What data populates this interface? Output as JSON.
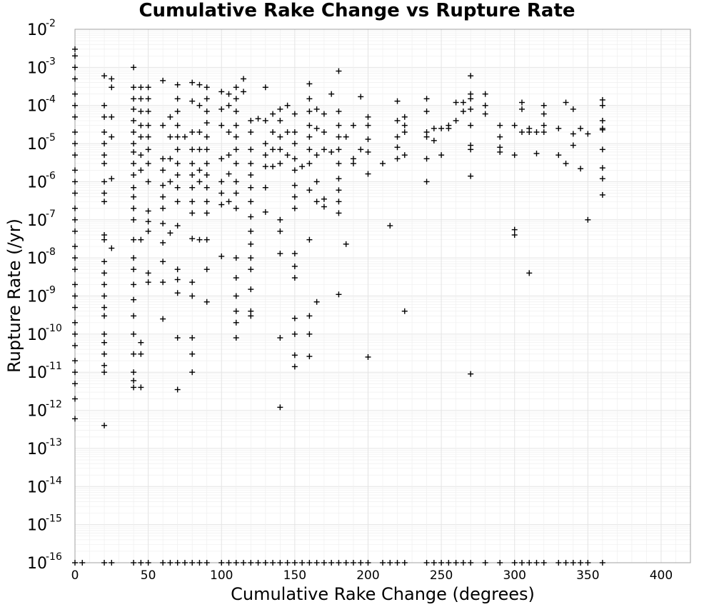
{
  "chart_data": {
    "type": "scatter",
    "title": "Cumulative Rake Change vs Rupture Rate",
    "xlabel": "Cumulative Rake Change (degrees)",
    "ylabel": "Rupture Rate (/yr)",
    "xlim": [
      0,
      420
    ],
    "ylim": [
      1e-16,
      0.01
    ],
    "y_scale": "log",
    "grid": true,
    "marker": "plus",
    "marker_color": "#000000",
    "xticks": [
      0,
      50,
      100,
      150,
      200,
      250,
      300,
      350,
      400
    ],
    "xtick_labels": [
      "0",
      "50",
      "100",
      "150",
      "200",
      "250",
      "300",
      "350",
      "400"
    ],
    "ytick_exponents": [
      -2,
      -3,
      -4,
      -5,
      -6,
      -7,
      -8,
      -9,
      -10,
      -11,
      -12,
      -13,
      -14,
      -15,
      -16
    ],
    "ytick_base": "10",
    "ytick_exp_labels": [
      "-2",
      "-3",
      "-4",
      "-5",
      "-6",
      "-7",
      "-8",
      "-9",
      "-10",
      "-11",
      "-12",
      "-13",
      "-14",
      "-15",
      "-16"
    ],
    "points": [
      [
        0,
        0.003
      ],
      [
        0,
        0.002
      ],
      [
        0,
        0.001
      ],
      [
        0,
        0.0005
      ],
      [
        0,
        0.0002
      ],
      [
        0,
        0.0001
      ],
      [
        0,
        5e-05
      ],
      [
        0,
        2e-05
      ],
      [
        0,
        1e-05
      ],
      [
        0,
        5e-06
      ],
      [
        0,
        2e-06
      ],
      [
        0,
        1e-06
      ],
      [
        0,
        5e-07
      ],
      [
        0,
        2e-07
      ],
      [
        0,
        1e-07
      ],
      [
        0,
        5e-08
      ],
      [
        0,
        2e-08
      ],
      [
        0,
        1e-08
      ],
      [
        0,
        5e-09
      ],
      [
        0,
        2e-09
      ],
      [
        0,
        1e-09
      ],
      [
        0,
        5e-10
      ],
      [
        0,
        2e-10
      ],
      [
        0,
        1e-10
      ],
      [
        0,
        5e-11
      ],
      [
        0,
        2e-11
      ],
      [
        0,
        1e-11
      ],
      [
        0,
        5e-12
      ],
      [
        0,
        2e-12
      ],
      [
        0,
        6e-13
      ],
      [
        20,
        0.0006
      ],
      [
        20,
        0.0001
      ],
      [
        20,
        5e-05
      ],
      [
        20,
        2e-05
      ],
      [
        20,
        1e-05
      ],
      [
        20,
        5e-06
      ],
      [
        20,
        3e-06
      ],
      [
        20,
        1e-06
      ],
      [
        20,
        5e-07
      ],
      [
        20,
        3e-07
      ],
      [
        20,
        4e-08
      ],
      [
        20,
        3e-08
      ],
      [
        20,
        8e-09
      ],
      [
        20,
        4e-09
      ],
      [
        20,
        2e-09
      ],
      [
        20,
        1e-09
      ],
      [
        20,
        5e-10
      ],
      [
        20,
        3e-10
      ],
      [
        20,
        1e-10
      ],
      [
        20,
        6e-11
      ],
      [
        20,
        3e-11
      ],
      [
        20,
        1.5e-11
      ],
      [
        20,
        1e-11
      ],
      [
        20,
        4e-13
      ],
      [
        25,
        0.0005
      ],
      [
        25,
        0.0003
      ],
      [
        25,
        5e-05
      ],
      [
        25,
        1.5e-05
      ],
      [
        25,
        1.2e-06
      ],
      [
        25,
        1.8e-08
      ],
      [
        40,
        0.001
      ],
      [
        40,
        0.0003
      ],
      [
        40,
        0.00015
      ],
      [
        40,
        8e-05
      ],
      [
        40,
        4e-05
      ],
      [
        40,
        2e-05
      ],
      [
        40,
        1e-05
      ],
      [
        40,
        6e-06
      ],
      [
        40,
        3e-06
      ],
      [
        40,
        1.5e-06
      ],
      [
        40,
        7e-07
      ],
      [
        40,
        4e-07
      ],
      [
        40,
        2e-07
      ],
      [
        40,
        1e-07
      ],
      [
        40,
        3e-08
      ],
      [
        40,
        1e-08
      ],
      [
        40,
        5e-09
      ],
      [
        40,
        2e-09
      ],
      [
        40,
        8e-10
      ],
      [
        40,
        3e-10
      ],
      [
        40,
        1e-10
      ],
      [
        40,
        3e-11
      ],
      [
        40,
        1e-11
      ],
      [
        40,
        6e-12
      ],
      [
        40,
        4e-12
      ],
      [
        45,
        0.0003
      ],
      [
        45,
        0.00015
      ],
      [
        45,
        7e-05
      ],
      [
        45,
        3e-05
      ],
      [
        45,
        1.5e-05
      ],
      [
        45,
        5e-06
      ],
      [
        45,
        2e-06
      ],
      [
        45,
        3e-08
      ],
      [
        45,
        6e-11
      ],
      [
        45,
        3e-11
      ],
      [
        45,
        4e-12
      ],
      [
        50,
        0.0003
      ],
      [
        50,
        0.00015
      ],
      [
        50,
        7e-05
      ],
      [
        50,
        3e-05
      ],
      [
        50,
        1.5e-05
      ],
      [
        50,
        7e-06
      ],
      [
        50,
        3e-06
      ],
      [
        50,
        1e-06
      ],
      [
        50,
        1.7e-07
      ],
      [
        50,
        9e-08
      ],
      [
        50,
        5e-08
      ],
      [
        50,
        4e-09
      ],
      [
        50,
        2.3e-09
      ],
      [
        60,
        0.00045
      ],
      [
        60,
        3e-05
      ],
      [
        60,
        4e-06
      ],
      [
        60,
        2e-06
      ],
      [
        60,
        8e-07
      ],
      [
        60,
        4e-07
      ],
      [
        60,
        2e-07
      ],
      [
        60,
        8e-08
      ],
      [
        60,
        2.5e-08
      ],
      [
        60,
        8e-09
      ],
      [
        60,
        2.3e-09
      ],
      [
        60,
        2.5e-10
      ],
      [
        65,
        5e-05
      ],
      [
        65,
        1.5e-05
      ],
      [
        65,
        4e-06
      ],
      [
        65,
        1e-06
      ],
      [
        65,
        4.5e-08
      ],
      [
        70,
        0.00035
      ],
      [
        70,
        0.00015
      ],
      [
        70,
        7e-05
      ],
      [
        70,
        3e-05
      ],
      [
        70,
        1.5e-05
      ],
      [
        70,
        7e-06
      ],
      [
        70,
        3e-06
      ],
      [
        70,
        1.5e-06
      ],
      [
        70,
        7e-07
      ],
      [
        70,
        3e-07
      ],
      [
        70,
        7e-08
      ],
      [
        70,
        5e-09
      ],
      [
        70,
        2.7e-09
      ],
      [
        70,
        1.2e-09
      ],
      [
        70,
        8e-11
      ],
      [
        70,
        3.5e-12
      ],
      [
        75,
        1.5e-05
      ],
      [
        80,
        0.0004
      ],
      [
        80,
        0.00013
      ],
      [
        80,
        2e-05
      ],
      [
        80,
        7e-06
      ],
      [
        80,
        3e-06
      ],
      [
        80,
        1.5e-06
      ],
      [
        80,
        7e-07
      ],
      [
        80,
        3e-07
      ],
      [
        80,
        1.5e-07
      ],
      [
        80,
        3.2e-08
      ],
      [
        80,
        2.3e-09
      ],
      [
        80,
        1e-09
      ],
      [
        80,
        8e-11
      ],
      [
        80,
        3e-11
      ],
      [
        80,
        1e-11
      ],
      [
        85,
        0.00035
      ],
      [
        85,
        0.0001
      ],
      [
        85,
        2e-05
      ],
      [
        85,
        7e-06
      ],
      [
        85,
        2e-06
      ],
      [
        85,
        1e-06
      ],
      [
        85,
        3e-08
      ],
      [
        90,
        0.0003
      ],
      [
        90,
        0.00015
      ],
      [
        90,
        7e-05
      ],
      [
        90,
        3.5e-05
      ],
      [
        90,
        1.5e-05
      ],
      [
        90,
        7e-06
      ],
      [
        90,
        3e-06
      ],
      [
        90,
        1.5e-06
      ],
      [
        90,
        7e-07
      ],
      [
        90,
        3e-07
      ],
      [
        90,
        1.5e-07
      ],
      [
        90,
        3e-08
      ],
      [
        90,
        5e-09
      ],
      [
        90,
        7e-10
      ],
      [
        100,
        0.00023
      ],
      [
        100,
        8e-05
      ],
      [
        100,
        3e-05
      ],
      [
        100,
        4e-06
      ],
      [
        100,
        1e-06
      ],
      [
        100,
        5e-07
      ],
      [
        100,
        2.5e-07
      ],
      [
        100,
        1.1e-08
      ],
      [
        105,
        0.0002
      ],
      [
        105,
        0.0001
      ],
      [
        105,
        2e-05
      ],
      [
        105,
        5e-06
      ],
      [
        105,
        1.6e-06
      ],
      [
        105,
        3e-07
      ],
      [
        110,
        0.0003
      ],
      [
        110,
        0.00015
      ],
      [
        110,
        7e-05
      ],
      [
        110,
        3e-05
      ],
      [
        110,
        1.5e-05
      ],
      [
        110,
        7e-06
      ],
      [
        110,
        3e-06
      ],
      [
        110,
        1e-06
      ],
      [
        110,
        5e-07
      ],
      [
        110,
        2e-07
      ],
      [
        110,
        1e-08
      ],
      [
        110,
        3e-09
      ],
      [
        110,
        1e-09
      ],
      [
        110,
        4e-10
      ],
      [
        110,
        2e-10
      ],
      [
        110,
        8e-11
      ],
      [
        115,
        0.0005
      ],
      [
        115,
        0.00023
      ],
      [
        120,
        4e-05
      ],
      [
        120,
        2e-05
      ],
      [
        120,
        7e-06
      ],
      [
        120,
        3e-06
      ],
      [
        120,
        1.5e-06
      ],
      [
        120,
        7e-07
      ],
      [
        120,
        3e-07
      ],
      [
        120,
        1.2e-07
      ],
      [
        120,
        5e-08
      ],
      [
        120,
        2.3e-08
      ],
      [
        120,
        1e-08
      ],
      [
        120,
        5e-09
      ],
      [
        120,
        1.5e-09
      ],
      [
        120,
        4e-10
      ],
      [
        120,
        3e-10
      ],
      [
        125,
        4.5e-05
      ],
      [
        130,
        0.0003
      ],
      [
        130,
        4e-05
      ],
      [
        130,
        1e-05
      ],
      [
        130,
        5e-06
      ],
      [
        130,
        2.5e-06
      ],
      [
        130,
        7e-07
      ],
      [
        130,
        1.6e-07
      ],
      [
        135,
        6e-05
      ],
      [
        135,
        2e-05
      ],
      [
        135,
        7e-06
      ],
      [
        135,
        2.5e-06
      ],
      [
        140,
        8e-05
      ],
      [
        140,
        4e-05
      ],
      [
        140,
        1.5e-05
      ],
      [
        140,
        7e-06
      ],
      [
        140,
        3e-06
      ],
      [
        140,
        1e-07
      ],
      [
        140,
        5e-08
      ],
      [
        140,
        1.3e-08
      ],
      [
        140,
        8e-11
      ],
      [
        140,
        1.2e-12
      ],
      [
        145,
        0.0001
      ],
      [
        145,
        5e-06
      ],
      [
        145,
        2e-05
      ],
      [
        150,
        6e-05
      ],
      [
        150,
        2e-05
      ],
      [
        150,
        1e-05
      ],
      [
        150,
        4e-06
      ],
      [
        150,
        2e-06
      ],
      [
        150,
        8e-07
      ],
      [
        150,
        4e-07
      ],
      [
        150,
        2e-07
      ],
      [
        150,
        1.3e-08
      ],
      [
        150,
        6e-09
      ],
      [
        150,
        3e-09
      ],
      [
        150,
        2.6e-10
      ],
      [
        150,
        1e-10
      ],
      [
        150,
        2.8e-11
      ],
      [
        150,
        1.4e-11
      ],
      [
        155,
        2.5e-06
      ],
      [
        160,
        0.00037
      ],
      [
        160,
        0.00015
      ],
      [
        160,
        7e-05
      ],
      [
        160,
        3e-05
      ],
      [
        160,
        1.5e-05
      ],
      [
        160,
        7e-06
      ],
      [
        160,
        3e-06
      ],
      [
        160,
        6e-07
      ],
      [
        160,
        3e-08
      ],
      [
        160,
        3e-10
      ],
      [
        160,
        1e-10
      ],
      [
        160,
        2.6e-11
      ],
      [
        165,
        8e-05
      ],
      [
        165,
        2.5e-05
      ],
      [
        165,
        5e-06
      ],
      [
        165,
        1e-06
      ],
      [
        165,
        3e-07
      ],
      [
        165,
        7e-10
      ],
      [
        170,
        6e-05
      ],
      [
        170,
        2e-05
      ],
      [
        170,
        7e-06
      ],
      [
        170,
        3.5e-07
      ],
      [
        170,
        2.2e-07
      ],
      [
        175,
        0.0002
      ],
      [
        175,
        6e-06
      ],
      [
        180,
        0.0008
      ],
      [
        180,
        7e-05
      ],
      [
        180,
        3e-05
      ],
      [
        180,
        1.5e-05
      ],
      [
        180,
        7e-06
      ],
      [
        180,
        3e-06
      ],
      [
        180,
        1.2e-06
      ],
      [
        180,
        6e-07
      ],
      [
        180,
        3e-07
      ],
      [
        180,
        1.5e-07
      ],
      [
        180,
        1.1e-09
      ],
      [
        185,
        1.5e-05
      ],
      [
        185,
        2.3e-08
      ],
      [
        190,
        3e-05
      ],
      [
        190,
        4e-06
      ],
      [
        190,
        3e-06
      ],
      [
        195,
        0.00017
      ],
      [
        195,
        7e-06
      ],
      [
        200,
        5e-05
      ],
      [
        200,
        3e-05
      ],
      [
        200,
        1.3e-05
      ],
      [
        200,
        6e-06
      ],
      [
        200,
        1.6e-06
      ],
      [
        200,
        2.5e-11
      ],
      [
        210,
        3e-06
      ],
      [
        215,
        7e-08
      ],
      [
        220,
        0.00013
      ],
      [
        220,
        4e-05
      ],
      [
        220,
        1.5e-05
      ],
      [
        220,
        8e-06
      ],
      [
        220,
        4e-06
      ],
      [
        225,
        5e-05
      ],
      [
        225,
        3e-05
      ],
      [
        225,
        2e-05
      ],
      [
        225,
        5e-06
      ],
      [
        225,
        4e-10
      ],
      [
        240,
        0.00015
      ],
      [
        240,
        7e-05
      ],
      [
        240,
        2e-05
      ],
      [
        240,
        1.5e-05
      ],
      [
        240,
        4e-06
      ],
      [
        240,
        1e-06
      ],
      [
        245,
        2.5e-05
      ],
      [
        245,
        1.2e-05
      ],
      [
        250,
        2.5e-05
      ],
      [
        250,
        5e-06
      ],
      [
        255,
        3e-05
      ],
      [
        255,
        2.5e-05
      ],
      [
        260,
        0.00012
      ],
      [
        260,
        4e-05
      ],
      [
        265,
        7e-05
      ],
      [
        265,
        0.00012
      ],
      [
        270,
        0.0006
      ],
      [
        270,
        0.0002
      ],
      [
        270,
        0.00015
      ],
      [
        270,
        8e-05
      ],
      [
        270,
        3e-05
      ],
      [
        270,
        9e-06
      ],
      [
        270,
        7e-06
      ],
      [
        270,
        1.4e-06
      ],
      [
        270,
        9e-12
      ],
      [
        280,
        0.0002
      ],
      [
        280,
        0.0001
      ],
      [
        280,
        6e-05
      ],
      [
        290,
        3e-05
      ],
      [
        290,
        1.5e-05
      ],
      [
        290,
        8e-06
      ],
      [
        290,
        6e-06
      ],
      [
        300,
        3e-05
      ],
      [
        300,
        5e-06
      ],
      [
        300,
        5.5e-08
      ],
      [
        300,
        4e-08
      ],
      [
        305,
        0.00012
      ],
      [
        305,
        8e-05
      ],
      [
        305,
        2e-05
      ],
      [
        310,
        2e-05
      ],
      [
        310,
        2.5e-05
      ],
      [
        310,
        4e-09
      ],
      [
        315,
        5.5e-06
      ],
      [
        315,
        2e-05
      ],
      [
        320,
        0.0001
      ],
      [
        320,
        6e-05
      ],
      [
        320,
        3e-05
      ],
      [
        320,
        2e-05
      ],
      [
        330,
        2.5e-05
      ],
      [
        330,
        5e-06
      ],
      [
        335,
        0.00012
      ],
      [
        335,
        3e-06
      ],
      [
        340,
        8e-05
      ],
      [
        340,
        1.8e-05
      ],
      [
        340,
        9e-06
      ],
      [
        345,
        2.2e-06
      ],
      [
        345,
        2.5e-05
      ],
      [
        350,
        1.8e-05
      ],
      [
        350,
        1e-07
      ],
      [
        360,
        0.00014
      ],
      [
        360,
        0.0001
      ],
      [
        360,
        4e-05
      ],
      [
        360,
        2.5e-05
      ],
      [
        360,
        2.3e-05
      ],
      [
        360,
        7e-06
      ],
      [
        360,
        2.3e-06
      ],
      [
        360,
        1.2e-06
      ],
      [
        360,
        4.5e-07
      ]
    ],
    "floor_points_x": [
      0,
      5,
      20,
      25,
      40,
      45,
      50,
      60,
      65,
      70,
      75,
      80,
      85,
      90,
      100,
      105,
      110,
      115,
      120,
      125,
      130,
      135,
      140,
      145,
      150,
      155,
      160,
      165,
      170,
      175,
      180,
      185,
      190,
      195,
      200,
      210,
      215,
      220,
      225,
      240,
      245,
      250,
      255,
      260,
      265,
      270,
      280,
      290,
      300,
      305,
      310,
      315,
      320,
      330,
      335,
      340,
      345,
      350,
      360
    ],
    "floor_value": 1e-16
  }
}
